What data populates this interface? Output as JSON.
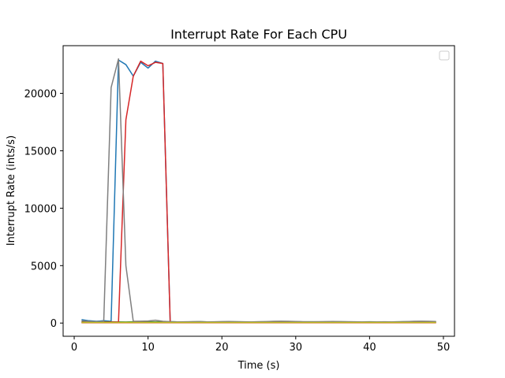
{
  "chart_data": {
    "type": "line",
    "title": "Interrupt Rate For Each CPU",
    "xlabel": "Time (s)",
    "ylabel": "Interrupt Rate (ints/s)",
    "xlim": [
      -1.5,
      51.5
    ],
    "ylim": [
      -1150,
      24150
    ],
    "xticks": [
      0,
      10,
      20,
      30,
      40,
      50
    ],
    "yticks": [
      0,
      5000,
      10000,
      15000,
      20000
    ],
    "grid": false,
    "legend": {
      "placement": "top-right",
      "entries": []
    },
    "series": [
      {
        "color": "#1f77b4",
        "x": [
          1,
          2,
          3,
          4,
          5,
          6,
          7,
          8,
          9,
          10,
          11,
          12,
          13,
          14,
          15,
          16,
          17,
          18,
          19,
          20,
          21,
          22,
          23,
          24,
          25,
          26,
          27,
          28,
          29,
          30,
          31,
          32,
          33,
          34,
          35,
          36,
          37,
          38,
          39,
          40,
          41,
          42,
          43,
          44,
          45,
          46,
          47,
          48,
          49
        ],
        "y": [
          300,
          200,
          150,
          200,
          150,
          22900,
          22500,
          21500,
          22700,
          22200,
          22800,
          22600,
          120,
          100,
          90,
          80,
          90,
          80,
          90,
          100,
          100,
          90,
          80,
          80,
          90,
          100,
          110,
          110,
          120,
          110,
          100,
          90,
          80,
          80,
          90,
          90,
          100,
          90,
          80,
          80,
          70,
          70,
          70,
          80,
          90,
          100,
          110,
          100,
          90
        ]
      },
      {
        "color": "#ff7f0e",
        "x": [
          1,
          2,
          3,
          4,
          5,
          6,
          7,
          8,
          9,
          10,
          11,
          12,
          13,
          14,
          15,
          16,
          17,
          18,
          19,
          20,
          21,
          22,
          23,
          24,
          25,
          26,
          27,
          28,
          29,
          30,
          31,
          32,
          33,
          34,
          35,
          36,
          37,
          38,
          39,
          40,
          41,
          42,
          43,
          44,
          45,
          46,
          47,
          48,
          49
        ],
        "y": [
          20,
          20,
          20,
          20,
          20,
          20,
          20,
          20,
          20,
          20,
          20,
          20,
          20,
          20,
          20,
          20,
          20,
          20,
          20,
          20,
          20,
          20,
          20,
          20,
          20,
          20,
          20,
          20,
          20,
          20,
          20,
          20,
          20,
          20,
          20,
          20,
          20,
          20,
          20,
          20,
          20,
          20,
          20,
          20,
          20,
          20,
          20,
          20,
          20
        ]
      },
      {
        "color": "#2ca02c",
        "x": [
          1,
          2,
          3,
          4,
          5,
          6,
          7,
          8,
          9,
          10,
          11,
          12,
          13,
          14,
          15,
          16,
          17,
          18,
          19,
          20,
          21,
          22,
          23,
          24,
          25,
          26,
          27,
          28,
          29,
          30,
          31,
          32,
          33,
          34,
          35,
          36,
          37,
          38,
          39,
          40,
          41,
          42,
          43,
          44,
          45,
          46,
          47,
          48,
          49
        ],
        "y": [
          120,
          100,
          90,
          100,
          110,
          100,
          90,
          110,
          120,
          110,
          100,
          120,
          110,
          100,
          90,
          110,
          120,
          100,
          90,
          100,
          110,
          110,
          100,
          90,
          100,
          110,
          120,
          110,
          100,
          90,
          100,
          110,
          100,
          90,
          100,
          110,
          100,
          90,
          100,
          110,
          100,
          90,
          100,
          110,
          120,
          110,
          100,
          90,
          100
        ]
      },
      {
        "color": "#d62728",
        "x": [
          1,
          2,
          3,
          4,
          5,
          6,
          7,
          8,
          9,
          10,
          11,
          12,
          13,
          14,
          15,
          16,
          17,
          18,
          19,
          20,
          21,
          22,
          23,
          24,
          25,
          26,
          27,
          28,
          29,
          30,
          31,
          32,
          33,
          34,
          35,
          36,
          37,
          38,
          39,
          40,
          41,
          42,
          43,
          44,
          45,
          46,
          47,
          48,
          49
        ],
        "y": [
          80,
          70,
          60,
          80,
          90,
          100,
          17700,
          21500,
          22800,
          22400,
          22700,
          22600,
          100,
          90,
          80,
          70,
          80,
          90,
          80,
          90,
          100,
          90,
          80,
          80,
          90,
          100,
          110,
          110,
          100,
          90,
          80,
          90,
          100,
          90,
          80,
          90,
          100,
          90,
          80,
          80,
          70,
          70,
          80,
          80,
          90,
          100,
          100,
          90,
          80
        ]
      },
      {
        "color": "#9467bd",
        "x": [
          1,
          2,
          3,
          4,
          5,
          6,
          7,
          8,
          9,
          10,
          11,
          12,
          13,
          14,
          15,
          16,
          17,
          18,
          19,
          20,
          21,
          22,
          23,
          24,
          25,
          26,
          27,
          28,
          29,
          30,
          31,
          32,
          33,
          34,
          35,
          36,
          37,
          38,
          39,
          40,
          41,
          42,
          43,
          44,
          45,
          46,
          47,
          48,
          49
        ],
        "y": [
          40,
          40,
          40,
          40,
          40,
          40,
          40,
          40,
          40,
          40,
          40,
          40,
          40,
          40,
          40,
          40,
          40,
          40,
          40,
          40,
          40,
          40,
          40,
          40,
          40,
          40,
          40,
          40,
          40,
          40,
          40,
          40,
          40,
          40,
          40,
          40,
          40,
          40,
          40,
          40,
          40,
          40,
          40,
          40,
          40,
          40,
          40,
          40,
          40
        ]
      },
      {
        "color": "#8c564b",
        "x": [
          1,
          2,
          3,
          4,
          5,
          6,
          7,
          8,
          9,
          10,
          11,
          12,
          13,
          14,
          15,
          16,
          17,
          18,
          19,
          20,
          21,
          22,
          23,
          24,
          25,
          26,
          27,
          28,
          29,
          30,
          31,
          32,
          33,
          34,
          35,
          36,
          37,
          38,
          39,
          40,
          41,
          42,
          43,
          44,
          45,
          46,
          47,
          48,
          49
        ],
        "y": [
          60,
          60,
          60,
          60,
          60,
          60,
          60,
          60,
          60,
          60,
          60,
          60,
          60,
          60,
          60,
          60,
          60,
          60,
          60,
          60,
          60,
          60,
          60,
          60,
          60,
          60,
          60,
          60,
          60,
          60,
          60,
          60,
          60,
          60,
          60,
          60,
          60,
          60,
          60,
          60,
          60,
          60,
          60,
          60,
          60,
          60,
          60,
          60,
          60
        ]
      },
      {
        "color": "#e377c2",
        "x": [
          1,
          2,
          3,
          4,
          5,
          6,
          7,
          8,
          9,
          10,
          11,
          12,
          13,
          14,
          15,
          16,
          17,
          18,
          19,
          20,
          21,
          22,
          23,
          24,
          25,
          26,
          27,
          28,
          29,
          30,
          31,
          32,
          33,
          34,
          35,
          36,
          37,
          38,
          39,
          40,
          41,
          42,
          43,
          44,
          45,
          46,
          47,
          48,
          49
        ],
        "y": [
          30,
          30,
          30,
          30,
          30,
          30,
          30,
          30,
          30,
          30,
          30,
          30,
          30,
          30,
          30,
          30,
          30,
          30,
          30,
          30,
          30,
          30,
          30,
          30,
          30,
          30,
          30,
          30,
          30,
          30,
          30,
          30,
          30,
          30,
          30,
          30,
          30,
          30,
          30,
          30,
          30,
          30,
          30,
          30,
          30,
          30,
          30,
          30,
          30
        ]
      },
      {
        "color": "#7f7f7f",
        "x": [
          1,
          2,
          3,
          4,
          5,
          6,
          7,
          8,
          9,
          10,
          11,
          12,
          13,
          14,
          15,
          16,
          17,
          18,
          19,
          20,
          21,
          22,
          23,
          24,
          25,
          26,
          27,
          28,
          29,
          30,
          31,
          32,
          33,
          34,
          35,
          36,
          37,
          38,
          39,
          40,
          41,
          42,
          43,
          44,
          45,
          46,
          47,
          48,
          49
        ],
        "y": [
          200,
          150,
          120,
          150,
          20500,
          23000,
          5000,
          150,
          160,
          180,
          250,
          150,
          120,
          100,
          110,
          120,
          130,
          100,
          110,
          130,
          140,
          120,
          110,
          100,
          120,
          130,
          150,
          160,
          150,
          140,
          120,
          110,
          120,
          130,
          140,
          130,
          120,
          110,
          100,
          90,
          100,
          110,
          100,
          110,
          130,
          150,
          160,
          150,
          140
        ]
      },
      {
        "color": "#bcbd22",
        "x": [
          1,
          2,
          3,
          4,
          5,
          6,
          7,
          8,
          9,
          10,
          11,
          12,
          13,
          14,
          15,
          16,
          17,
          18,
          19,
          20,
          21,
          22,
          23,
          24,
          25,
          26,
          27,
          28,
          29,
          30,
          31,
          32,
          33,
          34,
          35,
          36,
          37,
          38,
          39,
          40,
          41,
          42,
          43,
          44,
          45,
          46,
          47,
          48,
          49
        ],
        "y": [
          50,
          50,
          50,
          50,
          50,
          50,
          50,
          50,
          50,
          50,
          50,
          50,
          50,
          50,
          50,
          50,
          50,
          50,
          50,
          50,
          50,
          50,
          50,
          50,
          50,
          50,
          50,
          50,
          50,
          50,
          50,
          50,
          50,
          50,
          50,
          50,
          50,
          50,
          50,
          50,
          50,
          50,
          50,
          50,
          50,
          50,
          50,
          50,
          50
        ]
      }
    ]
  }
}
